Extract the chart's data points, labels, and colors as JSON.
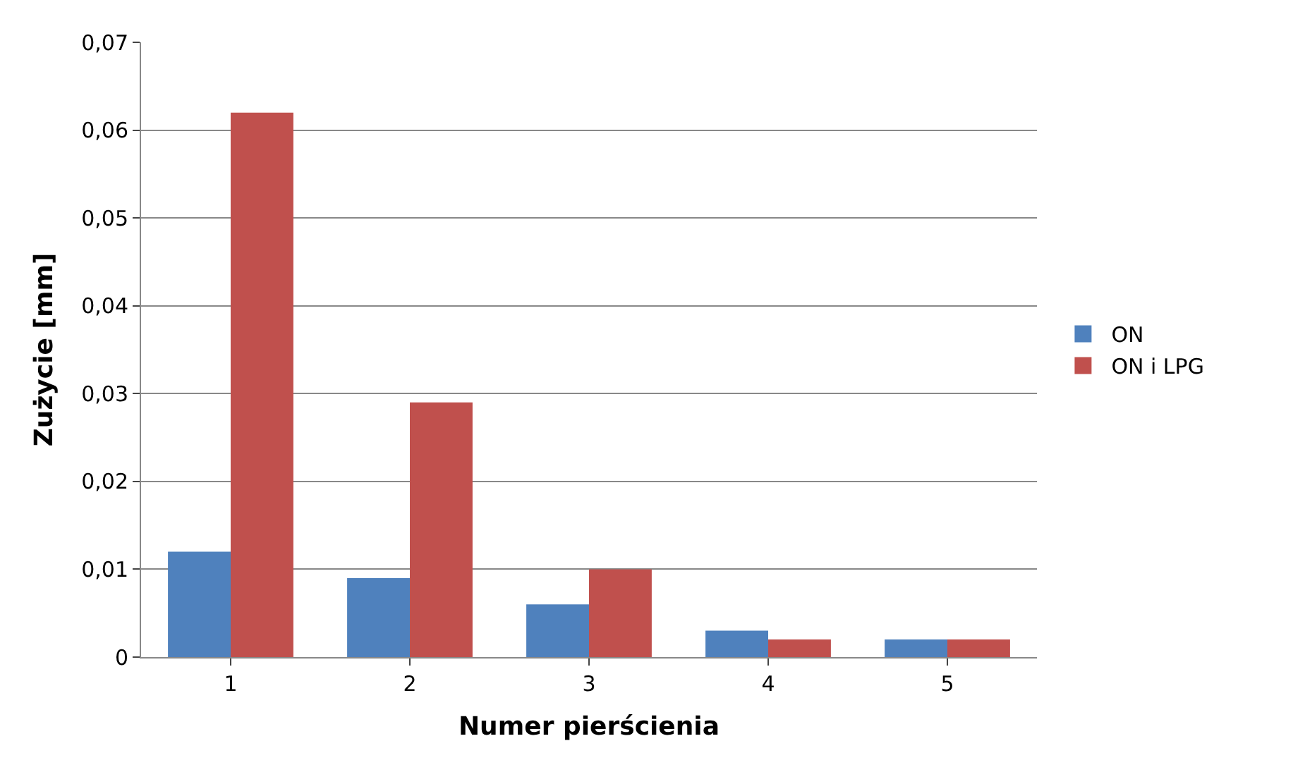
{
  "chart_data": {
    "type": "bar",
    "categories": [
      "1",
      "2",
      "3",
      "4",
      "5"
    ],
    "series": [
      {
        "name": "ON",
        "color": "#4f81bd",
        "values": [
          0.012,
          0.009,
          0.006,
          0.003,
          0.002
        ]
      },
      {
        "name": "ON i LPG",
        "color": "#c0504d",
        "values": [
          0.062,
          0.029,
          0.01,
          0.002,
          0.002
        ]
      }
    ],
    "xlabel": "Numer pierścienia",
    "ylabel": "Zużycie [mm]",
    "ylim": [
      0,
      0.07
    ],
    "yticks": [
      {
        "value": 0,
        "label": "0"
      },
      {
        "value": 0.01,
        "label": "0,01"
      },
      {
        "value": 0.02,
        "label": "0,02"
      },
      {
        "value": 0.03,
        "label": "0,03"
      },
      {
        "value": 0.04,
        "label": "0,04"
      },
      {
        "value": 0.05,
        "label": "0,05"
      },
      {
        "value": 0.06,
        "label": "0,06"
      },
      {
        "value": 0.07,
        "label": "0,07"
      }
    ],
    "grid": "y",
    "legend": "right"
  }
}
